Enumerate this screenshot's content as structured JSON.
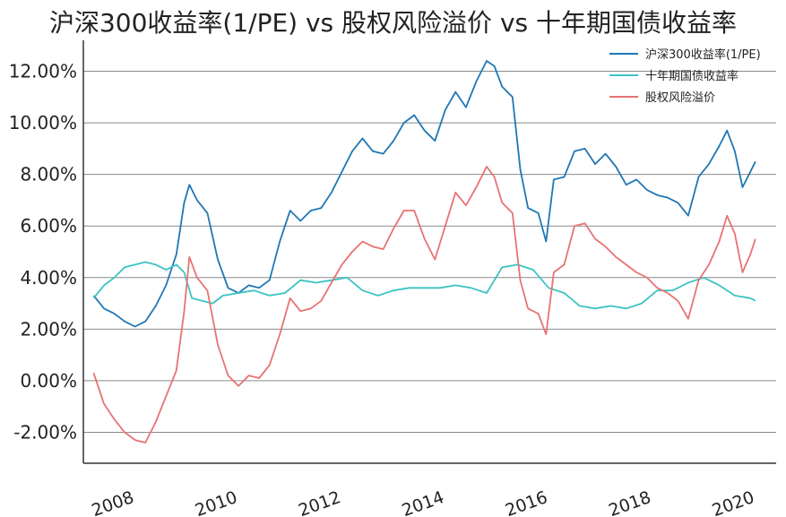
{
  "chart_data": {
    "type": "line",
    "title": "沪深300收益率(1/PE) vs 股权风险溢价 vs 十年期国债收益率",
    "xlabel": "",
    "ylabel": "",
    "xlim": [
      2007.0,
      2020.4
    ],
    "ylim": [
      -3.2,
      13.2
    ],
    "yticks": [
      -2,
      0,
      2,
      4,
      6,
      8,
      10,
      12
    ],
    "ytick_labels": [
      "-2.00%",
      "0.00%",
      "2.00%",
      "4.00%",
      "6.00%",
      "8.00%",
      "10.00%",
      "12.00%"
    ],
    "xticks": [
      2008,
      2010,
      2012,
      2014,
      2016,
      2018,
      2020
    ],
    "xtick_labels": [
      "2008",
      "2010",
      "2012",
      "2014",
      "2016",
      "2018",
      "2020"
    ],
    "grid": "horizontal",
    "legend_position": "top-right",
    "series": [
      {
        "name": "沪深300收益率(1/PE)",
        "color": "#1f77b4",
        "x": [
          2007.2,
          2007.4,
          2007.6,
          2007.8,
          2008.0,
          2008.2,
          2008.4,
          2008.6,
          2008.8,
          2008.95,
          2009.05,
          2009.2,
          2009.4,
          2009.6,
          2009.8,
          2010.0,
          2010.2,
          2010.4,
          2010.6,
          2010.8,
          2011.0,
          2011.2,
          2011.4,
          2011.6,
          2011.8,
          2012.0,
          2012.2,
          2012.4,
          2012.6,
          2012.8,
          2013.0,
          2013.2,
          2013.4,
          2013.6,
          2013.8,
          2014.0,
          2014.2,
          2014.4,
          2014.6,
          2014.8,
          2014.95,
          2015.1,
          2015.3,
          2015.45,
          2015.6,
          2015.8,
          2015.95,
          2016.1,
          2016.3,
          2016.5,
          2016.7,
          2016.9,
          2017.1,
          2017.3,
          2017.5,
          2017.7,
          2017.9,
          2018.1,
          2018.3,
          2018.5,
          2018.7,
          2018.9,
          2019.1,
          2019.3,
          2019.45,
          2019.6,
          2019.75,
          2019.9,
          2020.0
        ],
        "values": [
          3.3,
          2.8,
          2.6,
          2.3,
          2.1,
          2.3,
          2.9,
          3.7,
          4.9,
          6.9,
          7.6,
          7.0,
          6.5,
          4.7,
          3.6,
          3.4,
          3.7,
          3.6,
          3.9,
          5.4,
          6.6,
          6.2,
          6.6,
          6.7,
          7.3,
          8.1,
          8.9,
          9.4,
          8.9,
          8.8,
          9.3,
          10.0,
          10.3,
          9.7,
          9.3,
          10.5,
          11.2,
          10.6,
          11.6,
          12.4,
          12.2,
          11.4,
          11.0,
          8.2,
          6.7,
          6.5,
          5.4,
          7.8,
          7.9,
          8.9,
          9.0,
          8.4,
          8.8,
          8.3,
          7.6,
          7.8,
          7.4,
          7.2,
          7.1,
          6.9,
          6.4,
          7.9,
          8.4,
          9.1,
          9.7,
          8.9,
          7.5,
          8.1,
          8.5
        ]
      },
      {
        "name": "十年期国债收益率",
        "color": "#3cc3c3",
        "x": [
          2007.2,
          2007.4,
          2007.6,
          2007.8,
          2008.0,
          2008.2,
          2008.4,
          2008.6,
          2008.8,
          2008.95,
          2009.1,
          2009.3,
          2009.5,
          2009.7,
          2010.0,
          2010.3,
          2010.6,
          2010.9,
          2011.2,
          2011.5,
          2011.8,
          2012.1,
          2012.4,
          2012.7,
          2013.0,
          2013.3,
          2013.6,
          2013.9,
          2014.2,
          2014.5,
          2014.8,
          2015.1,
          2015.4,
          2015.7,
          2016.0,
          2016.3,
          2016.6,
          2016.9,
          2017.2,
          2017.5,
          2017.8,
          2018.1,
          2018.4,
          2018.7,
          2019.0,
          2019.3,
          2019.6,
          2019.9,
          2020.0
        ],
        "values": [
          3.2,
          3.7,
          4.0,
          4.4,
          4.5,
          4.6,
          4.5,
          4.3,
          4.5,
          4.2,
          3.2,
          3.1,
          3.0,
          3.3,
          3.4,
          3.5,
          3.3,
          3.4,
          3.9,
          3.8,
          3.9,
          4.0,
          3.5,
          3.3,
          3.5,
          3.6,
          3.6,
          3.6,
          3.7,
          3.6,
          3.4,
          4.4,
          4.5,
          4.3,
          3.6,
          3.4,
          2.9,
          2.8,
          2.9,
          2.8,
          3.0,
          3.5,
          3.5,
          3.8,
          4.0,
          3.7,
          3.3,
          3.2,
          3.1
        ]
      },
      {
        "name": "股权风险溢价",
        "color": "#e87272",
        "x": [
          2007.2,
          2007.4,
          2007.6,
          2007.8,
          2008.0,
          2008.2,
          2008.4,
          2008.6,
          2008.8,
          2008.95,
          2009.05,
          2009.2,
          2009.4,
          2009.6,
          2009.8,
          2010.0,
          2010.2,
          2010.4,
          2010.6,
          2010.8,
          2011.0,
          2011.2,
          2011.4,
          2011.6,
          2011.8,
          2012.0,
          2012.2,
          2012.4,
          2012.6,
          2012.8,
          2013.0,
          2013.2,
          2013.4,
          2013.6,
          2013.8,
          2014.0,
          2014.2,
          2014.4,
          2014.6,
          2014.8,
          2014.95,
          2015.1,
          2015.3,
          2015.45,
          2015.6,
          2015.8,
          2015.95,
          2016.1,
          2016.3,
          2016.5,
          2016.7,
          2016.9,
          2017.1,
          2017.3,
          2017.5,
          2017.7,
          2017.9,
          2018.1,
          2018.3,
          2018.5,
          2018.7,
          2018.9,
          2019.1,
          2019.3,
          2019.45,
          2019.6,
          2019.75,
          2019.9,
          2020.0
        ],
        "values": [
          0.3,
          -0.9,
          -1.5,
          -2.0,
          -2.3,
          -2.4,
          -1.6,
          -0.6,
          0.4,
          2.7,
          4.8,
          4.0,
          3.5,
          1.4,
          0.2,
          -0.2,
          0.2,
          0.1,
          0.6,
          1.8,
          3.2,
          2.7,
          2.8,
          3.1,
          3.8,
          4.5,
          5.0,
          5.4,
          5.2,
          5.1,
          5.9,
          6.6,
          6.6,
          5.5,
          4.7,
          6.0,
          7.3,
          6.8,
          7.5,
          8.3,
          7.9,
          6.9,
          6.5,
          3.9,
          2.8,
          2.6,
          1.8,
          4.2,
          4.5,
          6.0,
          6.1,
          5.5,
          5.2,
          4.8,
          4.5,
          4.2,
          4.0,
          3.6,
          3.4,
          3.1,
          2.4,
          3.9,
          4.5,
          5.4,
          6.4,
          5.7,
          4.2,
          4.9,
          5.5
        ]
      }
    ]
  }
}
